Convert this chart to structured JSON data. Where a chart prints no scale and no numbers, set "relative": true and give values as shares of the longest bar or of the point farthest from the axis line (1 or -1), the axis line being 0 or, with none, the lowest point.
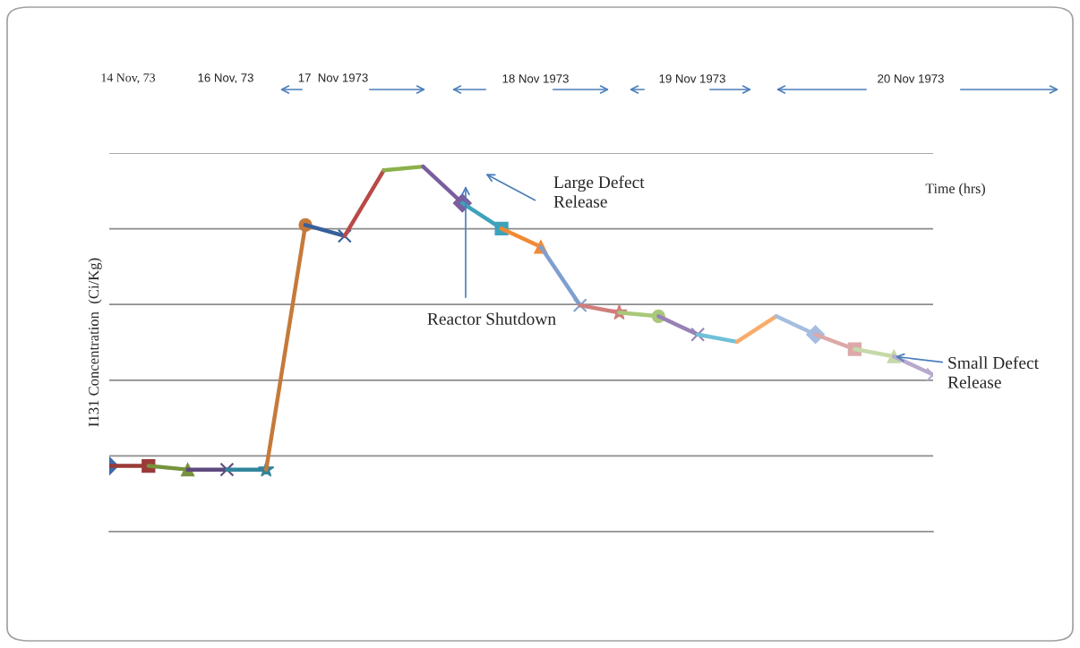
{
  "chart_data": {
    "type": "line",
    "relative": true,
    "grid": "y",
    "legend": false,
    "line_style": "solid",
    "tick_labels": false,
    "ylabel": "I131 Concentration  (Ci/Kg)",
    "categories": [
      null,
      null,
      null,
      null,
      null,
      null,
      null,
      null,
      null,
      null,
      null,
      null,
      null,
      null,
      null,
      null,
      null,
      null,
      null,
      null,
      null,
      null
    ],
    "annotations": [
      "14 Nov, 73",
      "16 Nov, 73",
      "17  Nov 1973",
      "18 Nov 1973",
      "19 Nov 1973",
      "20 Nov 1973",
      "Time (hrs)",
      "Large Defect\nRelease",
      "Reactor Shutdown",
      "Small Defect\nRelease"
    ],
    "series": [
      {
        "color": "#3f6aa8",
        "marker": "diamond",
        "values": [
          0.18,
          null,
          null,
          null,
          null,
          null,
          null,
          null,
          null,
          null,
          null,
          null,
          null,
          null,
          null,
          null,
          null,
          null,
          null,
          null,
          null,
          null
        ]
      },
      {
        "color": "#9b3a38",
        "marker": "square",
        "values": [
          0.18,
          0.18,
          null,
          null,
          null,
          null,
          null,
          null,
          null,
          null,
          null,
          null,
          null,
          null,
          null,
          null,
          null,
          null,
          null,
          null,
          null,
          null
        ]
      },
      {
        "color": "#77933c",
        "marker": "triangle",
        "values": [
          null,
          0.18,
          0.17,
          null,
          null,
          null,
          null,
          null,
          null,
          null,
          null,
          null,
          null,
          null,
          null,
          null,
          null,
          null,
          null,
          null,
          null,
          null
        ]
      },
      {
        "color": "#5f4a7e",
        "marker": "cross",
        "values": [
          null,
          null,
          0.17,
          0.17,
          null,
          null,
          null,
          null,
          null,
          null,
          null,
          null,
          null,
          null,
          null,
          null,
          null,
          null,
          null,
          null,
          null,
          null
        ]
      },
      {
        "color": "#31859c",
        "marker": "star",
        "values": [
          null,
          null,
          null,
          0.17,
          0.17,
          null,
          null,
          null,
          null,
          null,
          null,
          null,
          null,
          null,
          null,
          null,
          null,
          null,
          null,
          null,
          null,
          null
        ]
      },
      {
        "color": "#c57a3a",
        "marker": "circle",
        "values": [
          null,
          null,
          null,
          null,
          0.17,
          0.84,
          null,
          null,
          null,
          null,
          null,
          null,
          null,
          null,
          null,
          null,
          null,
          null,
          null,
          null,
          null,
          null
        ]
      },
      {
        "color": "#37609a",
        "marker": "cross",
        "values": [
          null,
          null,
          null,
          null,
          null,
          0.84,
          0.81,
          null,
          null,
          null,
          null,
          null,
          null,
          null,
          null,
          null,
          null,
          null,
          null,
          null,
          null,
          null
        ]
      },
      {
        "color": "#b84a47",
        "marker": "none",
        "values": [
          null,
          null,
          null,
          null,
          null,
          null,
          0.81,
          0.99,
          null,
          null,
          null,
          null,
          null,
          null,
          null,
          null,
          null,
          null,
          null,
          null,
          null,
          null
        ]
      },
      {
        "color": "#8bb04a",
        "marker": "none",
        "values": [
          null,
          null,
          null,
          null,
          null,
          null,
          null,
          0.99,
          1.0,
          null,
          null,
          null,
          null,
          null,
          null,
          null,
          null,
          null,
          null,
          null,
          null,
          null
        ]
      },
      {
        "color": "#7a5e9e",
        "marker": "diamond",
        "values": [
          null,
          null,
          null,
          null,
          null,
          null,
          null,
          null,
          1.0,
          0.9,
          null,
          null,
          null,
          null,
          null,
          null,
          null,
          null,
          null,
          null,
          null,
          null
        ]
      },
      {
        "color": "#3fa2bb",
        "marker": "square",
        "values": [
          null,
          null,
          null,
          null,
          null,
          null,
          null,
          null,
          null,
          0.9,
          0.83,
          null,
          null,
          null,
          null,
          null,
          null,
          null,
          null,
          null,
          null,
          null
        ]
      },
      {
        "color": "#f08a35",
        "marker": "triangle",
        "values": [
          null,
          null,
          null,
          null,
          null,
          null,
          null,
          null,
          null,
          null,
          0.83,
          0.78,
          null,
          null,
          null,
          null,
          null,
          null,
          null,
          null,
          null,
          null
        ]
      },
      {
        "color": "#7f9fd0",
        "marker": "cross",
        "values": [
          null,
          null,
          null,
          null,
          null,
          null,
          null,
          null,
          null,
          null,
          null,
          0.78,
          0.62,
          null,
          null,
          null,
          null,
          null,
          null,
          null,
          null,
          null
        ]
      },
      {
        "color": "#d07e7c",
        "marker": "star",
        "values": [
          null,
          null,
          null,
          null,
          null,
          null,
          null,
          null,
          null,
          null,
          null,
          null,
          0.62,
          0.6,
          null,
          null,
          null,
          null,
          null,
          null,
          null,
          null
        ]
      },
      {
        "color": "#a9c97a",
        "marker": "circle",
        "values": [
          null,
          null,
          null,
          null,
          null,
          null,
          null,
          null,
          null,
          null,
          null,
          null,
          null,
          0.6,
          0.59,
          null,
          null,
          null,
          null,
          null,
          null,
          null
        ]
      },
      {
        "color": "#9882b5",
        "marker": "cross",
        "values": [
          null,
          null,
          null,
          null,
          null,
          null,
          null,
          null,
          null,
          null,
          null,
          null,
          null,
          null,
          0.59,
          0.54,
          null,
          null,
          null,
          null,
          null,
          null
        ]
      },
      {
        "color": "#6fc0d6",
        "marker": "none",
        "values": [
          null,
          null,
          null,
          null,
          null,
          null,
          null,
          null,
          null,
          null,
          null,
          null,
          null,
          null,
          null,
          0.54,
          0.52,
          null,
          null,
          null,
          null,
          null
        ]
      },
      {
        "color": "#f9ab6b",
        "marker": "none",
        "values": [
          null,
          null,
          null,
          null,
          null,
          null,
          null,
          null,
          null,
          null,
          null,
          null,
          null,
          null,
          null,
          null,
          0.52,
          0.59,
          null,
          null,
          null,
          null
        ]
      },
      {
        "color": "#a5bde0",
        "marker": "diamond",
        "values": [
          null,
          null,
          null,
          null,
          null,
          null,
          null,
          null,
          null,
          null,
          null,
          null,
          null,
          null,
          null,
          null,
          null,
          0.59,
          0.54,
          null,
          null,
          null
        ]
      },
      {
        "color": "#dca9a8",
        "marker": "square",
        "values": [
          null,
          null,
          null,
          null,
          null,
          null,
          null,
          null,
          null,
          null,
          null,
          null,
          null,
          null,
          null,
          null,
          null,
          null,
          0.54,
          0.5,
          null,
          null
        ]
      },
      {
        "color": "#c6d9a8",
        "marker": "triangle",
        "values": [
          null,
          null,
          null,
          null,
          null,
          null,
          null,
          null,
          null,
          null,
          null,
          null,
          null,
          null,
          null,
          null,
          null,
          null,
          null,
          0.5,
          0.48,
          null
        ]
      },
      {
        "color": "#b8aacd",
        "marker": "cross",
        "values": [
          null,
          null,
          null,
          null,
          null,
          null,
          null,
          null,
          null,
          null,
          null,
          null,
          null,
          null,
          null,
          null,
          null,
          null,
          null,
          null,
          0.48,
          0.43
        ]
      }
    ]
  }
}
